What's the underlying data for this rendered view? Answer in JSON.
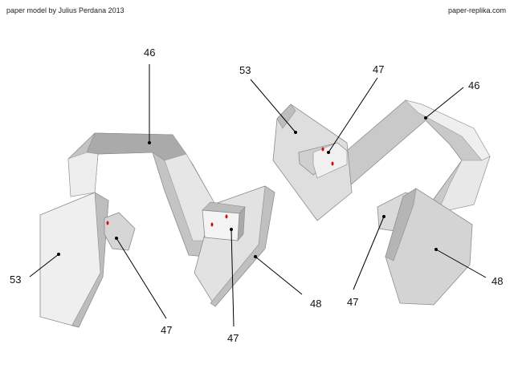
{
  "header": {
    "credit": "paper model by Julius Perdana 2013",
    "site": "paper-replika.com"
  },
  "colors": {
    "face_light": "#f2f2f2",
    "face_mid": "#dcdcdc",
    "face_dark": "#b9b9b9",
    "face_shadow": "#9e9e9e",
    "edge": "#8c8c8c",
    "marker": "#cc1111"
  },
  "callouts": [
    {
      "id": "c46a",
      "text": "46"
    },
    {
      "id": "c53a",
      "text": "53"
    },
    {
      "id": "c47a",
      "text": "47"
    },
    {
      "id": "c47b",
      "text": "47"
    },
    {
      "id": "c48a",
      "text": "48"
    },
    {
      "id": "c53b",
      "text": "53"
    },
    {
      "id": "c47c",
      "text": "47"
    },
    {
      "id": "c46b",
      "text": "46"
    },
    {
      "id": "c47d",
      "text": "47"
    },
    {
      "id": "c48b",
      "text": "48"
    }
  ]
}
